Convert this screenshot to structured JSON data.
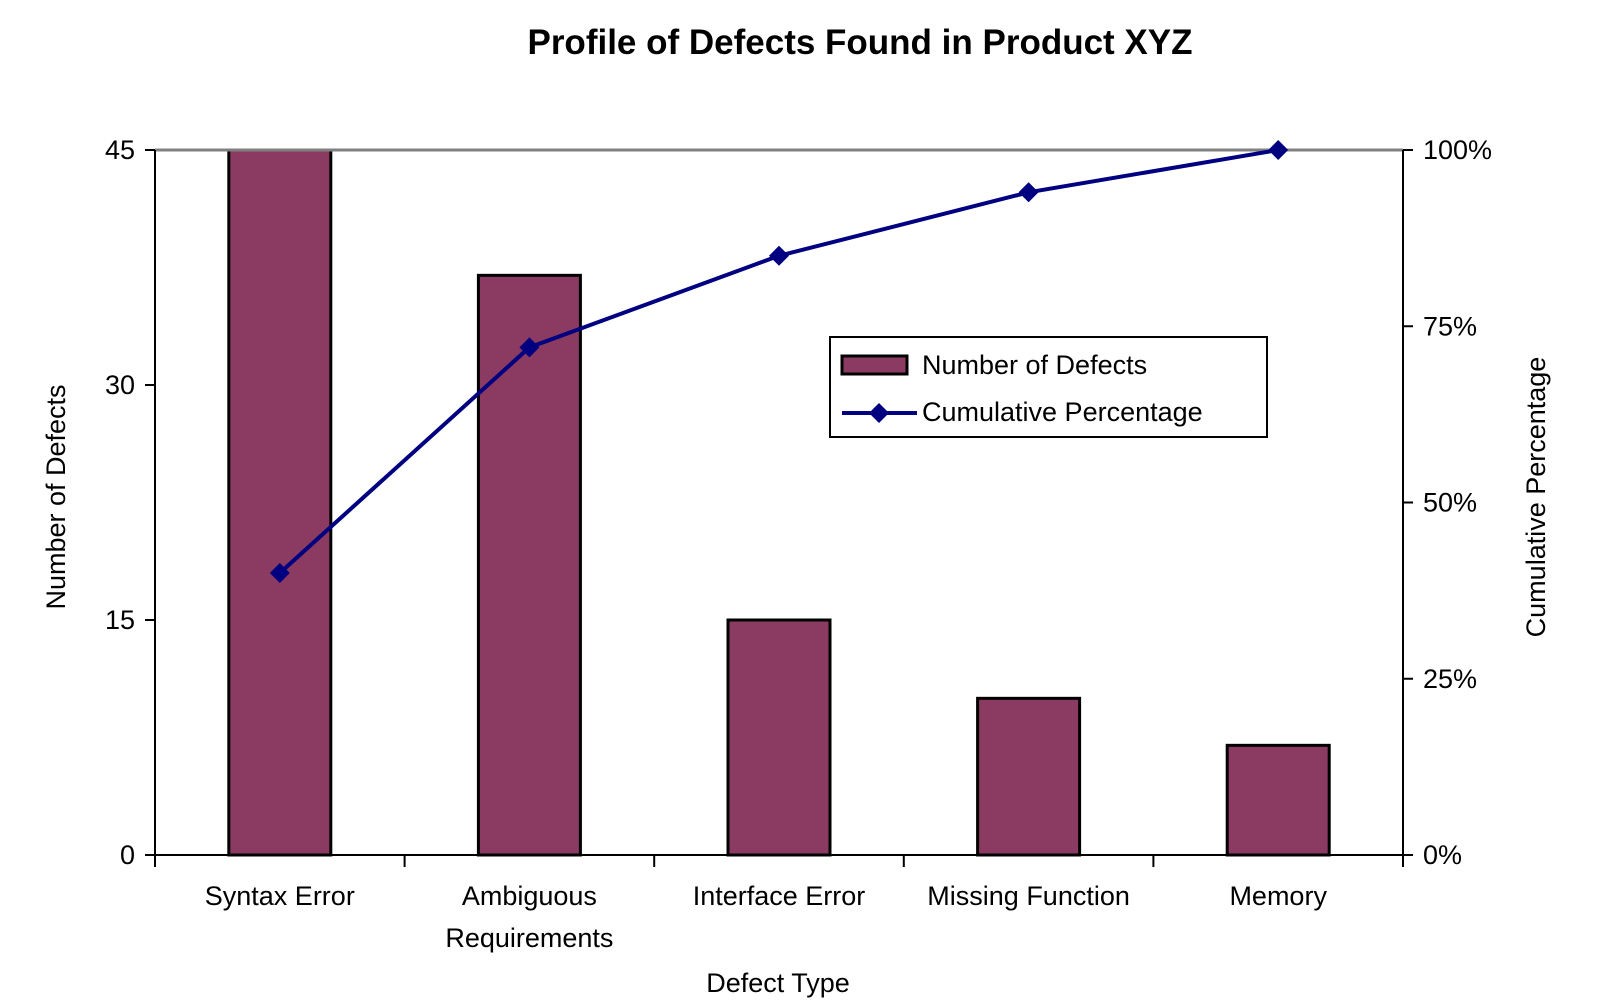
{
  "chart_data": {
    "type": "bar",
    "title": "Profile of Defects Found in Product XYZ",
    "xlabel": "Defect Type",
    "ylabel": "Number of Defects",
    "y2label": "Cumulative Percentage",
    "categories": [
      [
        "Syntax Error"
      ],
      [
        "Ambiguous",
        "Requirements"
      ],
      [
        "Interface Error"
      ],
      [
        "Missing Function"
      ],
      [
        "Memory"
      ]
    ],
    "series": [
      {
        "name": "Number of Defects",
        "type": "bar",
        "axis": "left",
        "color": "#8B3A62",
        "values": [
          45,
          37,
          15,
          10,
          7
        ]
      },
      {
        "name": "Cumulative Percentage",
        "type": "line",
        "axis": "right",
        "color": "#000080",
        "marker": "diamond",
        "values": [
          40,
          72,
          85,
          94,
          100
        ]
      }
    ],
    "ylim": [
      0,
      45
    ],
    "yticks": [
      0,
      15,
      30,
      45
    ],
    "ytick_labels": [
      "0",
      "15",
      "30",
      "45"
    ],
    "y2lim": [
      0,
      100
    ],
    "y2ticks": [
      0,
      25,
      50,
      75,
      100
    ],
    "y2tick_labels": [
      "0%",
      "25%",
      "50%",
      "75%",
      "100%"
    ],
    "grid": false,
    "legend_position": "upper-right"
  }
}
